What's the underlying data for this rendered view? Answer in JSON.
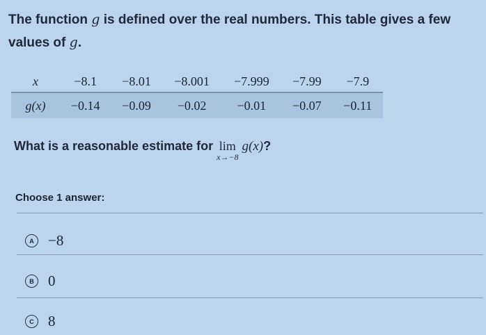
{
  "prompt": {
    "text_before": "The function ",
    "fn": "g",
    "text_middle": " is defined over the real numbers. This table gives a few values of ",
    "fn2": "g",
    "text_after": "."
  },
  "table": {
    "x_label": "x",
    "gx_label": "g(x)",
    "x_values": [
      "−8.1",
      "−8.01",
      "−8.001",
      "−7.999",
      "−7.99",
      "−7.9"
    ],
    "g_values": [
      "−0.14",
      "−0.09",
      "−0.02",
      "−0.01",
      "−0.07",
      "−0.11"
    ]
  },
  "question": {
    "text": "What is a reasonable estimate for ",
    "lim": "lim",
    "lim_sub": "x→−8",
    "expr": "g(x)",
    "end": "?"
  },
  "choose_label": "Choose 1 answer:",
  "options": [
    {
      "letter": "A",
      "value": "−8"
    },
    {
      "letter": "B",
      "value": "0"
    },
    {
      "letter": "C",
      "value": "8"
    }
  ]
}
